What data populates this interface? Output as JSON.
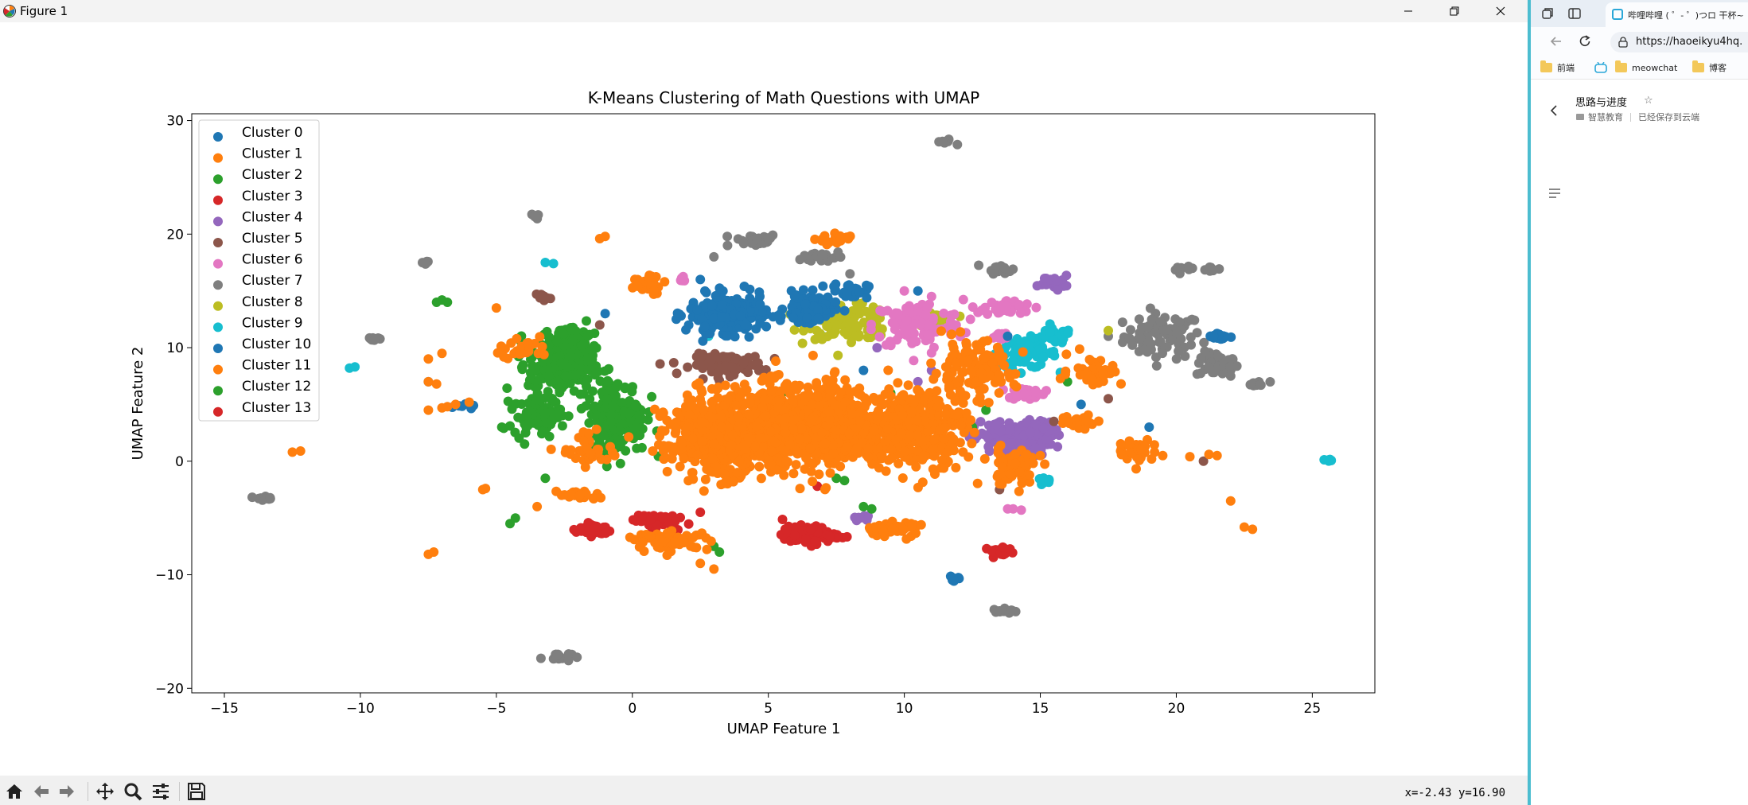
{
  "window": {
    "title": "Figure 1",
    "coords_readout": "x=-2.43 y=16.90"
  },
  "colors": {
    "C0": "#1f77b4",
    "C1": "#ff7f0e",
    "C2": "#2ca02c",
    "C3": "#d62728",
    "C4": "#9467bd",
    "C5": "#8c564b",
    "C6": "#e377c2",
    "C7": "#7f7f7f",
    "C8": "#bcbd22",
    "C9": "#17becf"
  },
  "toolbar": {
    "buttons": [
      "home-icon",
      "back-arrow-icon",
      "forward-arrow-icon",
      "pan-icon",
      "zoom-icon",
      "configure-subplots-icon",
      "save-icon"
    ]
  },
  "chart_data": {
    "type": "scatter",
    "title": "K-Means Clustering of Math Questions with UMAP",
    "xlabel": "UMAP Feature 1",
    "ylabel": "UMAP Feature 2",
    "xlim": [
      -16.2,
      27.3
    ],
    "ylim": [
      -20.4,
      30.6
    ],
    "xticks": [
      -15,
      -10,
      -5,
      0,
      5,
      10,
      15,
      20,
      25
    ],
    "yticks": [
      -20,
      -10,
      0,
      10,
      20,
      30
    ],
    "grid": false,
    "legend_position": "upper-left",
    "series": [
      {
        "name": "Cluster 0",
        "color": "#1f77b4",
        "blobs": [
          [
            3.5,
            13,
            1.3,
            1.5,
            220
          ],
          [
            6.5,
            13.5,
            0.8,
            1.1,
            110
          ],
          [
            8,
            15,
            0.6,
            0.6,
            30
          ],
          [
            21.6,
            11,
            0.5,
            0.3,
            18
          ],
          [
            11.8,
            -10.3,
            0.3,
            0.2,
            8
          ],
          [
            -6.2,
            5,
            0.3,
            0.3,
            6
          ]
        ],
        "points": [
          [
            10.5,
            15
          ],
          [
            13.8,
            11
          ],
          [
            16.5,
            5
          ],
          [
            19,
            3
          ],
          [
            -7.5,
            7
          ],
          [
            2.5,
            16
          ],
          [
            8.5,
            8
          ],
          [
            11,
            4
          ],
          [
            -1,
            13
          ]
        ]
      },
      {
        "name": "Cluster 1",
        "color": "#ff7f0e",
        "blobs": [
          [
            6,
            3,
            3.2,
            3.2,
            1100
          ],
          [
            3,
            2,
            1.6,
            3,
            320
          ],
          [
            10.5,
            3,
            1.6,
            3,
            340
          ],
          [
            12.5,
            8,
            1.4,
            2.2,
            140
          ],
          [
            9.5,
            -6,
            1,
            0.6,
            50
          ],
          [
            1.5,
            -7,
            1.2,
            0.7,
            60
          ],
          [
            14,
            -0.5,
            1,
            1.5,
            55
          ],
          [
            16.5,
            3.5,
            0.7,
            0.6,
            25
          ],
          [
            17,
            8,
            0.9,
            1.2,
            40
          ],
          [
            18.5,
            1,
            0.6,
            0.9,
            30
          ],
          [
            -4,
            10,
            0.8,
            1,
            30
          ],
          [
            -1.5,
            1,
            1,
            1.2,
            40
          ],
          [
            -2,
            -3,
            0.7,
            0.4,
            20
          ],
          [
            0.6,
            15.5,
            0.7,
            1,
            25
          ],
          [
            7.5,
            19.5,
            0.6,
            0.5,
            18
          ]
        ],
        "points": [
          [
            -12.5,
            0.8
          ],
          [
            -12.2,
            0.9
          ],
          [
            -7.5,
            -8.2
          ],
          [
            -7.3,
            -8
          ],
          [
            -5.5,
            -2.5
          ],
          [
            -5.4,
            -2.4
          ],
          [
            -5,
            13.5
          ],
          [
            -1,
            19.8
          ],
          [
            -1.2,
            19.6
          ],
          [
            22.5,
            -5.8
          ],
          [
            22.8,
            -6
          ],
          [
            22,
            -3.5
          ],
          [
            21.5,
            0.5
          ],
          [
            19.5,
            0.5
          ],
          [
            19.2,
            0.8
          ],
          [
            -7,
            9.5
          ],
          [
            -7.5,
            9
          ],
          [
            -6.5,
            5
          ],
          [
            -7.5,
            4.5
          ],
          [
            -7,
            4.7
          ],
          [
            -6.8,
            4.8
          ],
          [
            -6,
            5.2
          ],
          [
            -7.5,
            7
          ],
          [
            -7.2,
            6.8
          ],
          [
            -3.5,
            -4
          ],
          [
            2.5,
            -9
          ],
          [
            3,
            -9.5
          ],
          [
            14.5,
            0.6
          ],
          [
            15,
            0.5
          ],
          [
            13.5,
            -2
          ],
          [
            20.5,
            0.4
          ],
          [
            21.2,
            0.6
          ]
        ]
      },
      {
        "name": "Cluster 2",
        "color": "#2ca02c",
        "blobs": [
          [
            -2.6,
            8.5,
            1.1,
            2.5,
            240
          ],
          [
            -0.6,
            4,
            1,
            3,
            220
          ],
          [
            -3.5,
            4,
            0.8,
            1.5,
            70
          ],
          [
            -2.3,
            11,
            0.7,
            0.9,
            40
          ]
        ],
        "points": [
          [
            -7.2,
            14
          ],
          [
            -7,
            14.2
          ],
          [
            -6.8,
            14
          ],
          [
            -4.8,
            3
          ],
          [
            -4.5,
            3.1
          ],
          [
            -4.3,
            -5
          ],
          [
            -4.5,
            -5.5
          ],
          [
            -3.2,
            -1.5
          ],
          [
            3,
            -7.5
          ],
          [
            3.2,
            -8
          ],
          [
            7.5,
            -1.5
          ],
          [
            7.8,
            -1.7
          ],
          [
            8.5,
            -4
          ],
          [
            8.8,
            -4.2
          ],
          [
            9.5,
            6
          ],
          [
            10,
            5.5
          ],
          [
            16,
            7
          ],
          [
            6.5,
            5
          ],
          [
            5.5,
            6
          ],
          [
            12.5,
            3
          ],
          [
            13,
            4.5
          ]
        ]
      },
      {
        "name": "Cluster 3",
        "color": "#d62728",
        "blobs": [
          [
            6.5,
            -6.5,
            0.9,
            0.7,
            100
          ],
          [
            0.8,
            -5.2,
            0.7,
            0.6,
            60
          ],
          [
            -1.4,
            -6,
            0.6,
            0.5,
            40
          ],
          [
            13.5,
            -8,
            0.5,
            0.4,
            25
          ]
        ],
        "points": [
          [
            2.5,
            -4.5
          ],
          [
            6.8,
            -2.2
          ]
        ]
      },
      {
        "name": "Cluster 4",
        "color": "#9467bd",
        "blobs": [
          [
            14,
            2,
            1.3,
            1.4,
            140
          ],
          [
            15.5,
            15.8,
            0.5,
            0.5,
            30
          ],
          [
            15,
            3,
            0.5,
            0.6,
            25
          ],
          [
            8.5,
            -5,
            0.3,
            0.2,
            8
          ]
        ],
        "points": [
          [
            10.5,
            7
          ],
          [
            11,
            8
          ],
          [
            9,
            10
          ]
        ]
      },
      {
        "name": "Cluster 5",
        "color": "#8c564b",
        "blobs": [
          [
            3.5,
            8.5,
            1.2,
            0.8,
            120
          ],
          [
            -3.3,
            14.5,
            0.2,
            0.3,
            10
          ]
        ],
        "points": [
          [
            -1.2,
            12
          ],
          [
            15.5,
            3.5
          ],
          [
            17.5,
            5.5
          ],
          [
            21,
            0
          ],
          [
            13.5,
            -2.5
          ]
        ]
      },
      {
        "name": "Cluster 6",
        "color": "#e377c2",
        "blobs": [
          [
            10.5,
            12,
            1.5,
            2,
            110
          ],
          [
            13.8,
            13.5,
            0.8,
            0.6,
            40
          ],
          [
            14.5,
            6,
            0.6,
            0.5,
            25
          ],
          [
            13.5,
            11,
            0.4,
            0.4,
            15
          ],
          [
            1.8,
            16,
            0.2,
            0.2,
            5
          ]
        ],
        "points": [
          [
            10,
            15
          ],
          [
            11,
            14.5
          ],
          [
            14,
            -4.2
          ],
          [
            14.3,
            -4.3
          ],
          [
            13.8,
            -4.2
          ]
        ]
      },
      {
        "name": "Cluster 7",
        "color": "#7f7f7f",
        "blobs": [
          [
            19.5,
            11,
            1.3,
            1.8,
            80
          ],
          [
            21.5,
            8.5,
            0.7,
            1,
            40
          ],
          [
            4.5,
            19.5,
            0.8,
            0.5,
            30
          ],
          [
            7,
            18,
            0.7,
            0.5,
            25
          ],
          [
            13.5,
            17,
            0.4,
            0.4,
            15
          ],
          [
            11.5,
            28.1,
            0.3,
            0.2,
            10
          ],
          [
            13.7,
            -13.2,
            0.4,
            0.2,
            12
          ],
          [
            -2.8,
            -17.2,
            0.5,
            0.4,
            15
          ],
          [
            23,
            6.8,
            0.4,
            0.2,
            12
          ],
          [
            -13.5,
            -3.2,
            0.3,
            0.2,
            10
          ],
          [
            21.3,
            16.9,
            0.3,
            0.2,
            8
          ],
          [
            20.3,
            16.9,
            0.3,
            0.2,
            8
          ],
          [
            -7.6,
            17.5,
            0.2,
            0.2,
            6
          ],
          [
            -9.5,
            10.8,
            0.3,
            0.2,
            8
          ],
          [
            -3.5,
            21.6,
            0.2,
            0.2,
            6
          ]
        ],
        "points": [
          [
            3,
            18
          ],
          [
            3.5,
            19
          ],
          [
            8,
            16.5
          ],
          [
            17.5,
            11
          ],
          [
            22,
            7.5
          ]
        ]
      },
      {
        "name": "Cluster 8",
        "color": "#bcbd22",
        "blobs": [
          [
            8,
            12.2,
            1.4,
            1.3,
            120
          ],
          [
            11,
            12.5,
            0.6,
            0.6,
            30
          ]
        ],
        "points": [
          [
            17.5,
            11.5
          ],
          [
            7,
            5
          ]
        ]
      },
      {
        "name": "Cluster 9",
        "color": "#17becf",
        "blobs": [
          [
            14.5,
            9.5,
            1,
            1.2,
            80
          ],
          [
            15.5,
            11,
            0.6,
            0.6,
            30
          ],
          [
            15.2,
            -1.8,
            0.3,
            0.3,
            10
          ],
          [
            25.6,
            0.1,
            0.2,
            0.2,
            6
          ]
        ],
        "points": [
          [
            -3.2,
            17.5
          ],
          [
            -2.9,
            17.4
          ],
          [
            -10.4,
            8.2
          ],
          [
            -10.2,
            8.3
          ],
          [
            7,
            11
          ],
          [
            -1.5,
            -6.5
          ],
          [
            2.8,
            11
          ]
        ]
      },
      {
        "name": "Cluster 10",
        "color": "#1f77b4",
        "blobs": [],
        "points": []
      },
      {
        "name": "Cluster 11",
        "color": "#ff7f0e",
        "blobs": [],
        "points": []
      },
      {
        "name": "Cluster 12",
        "color": "#2ca02c",
        "blobs": [],
        "points": []
      },
      {
        "name": "Cluster 13",
        "color": "#d62728",
        "blobs": [],
        "points": []
      }
    ]
  },
  "browser": {
    "tab_title": "哔哩哔哩 ( ゜- ゜)つロ 干杯~",
    "url": "https://haoeikyu4hq.",
    "bookmarks": [
      "前端",
      "meowchat",
      "博客"
    ],
    "doc_title": "思路与进度",
    "doc_folder": "智慧教育",
    "doc_status": "已经保存到云端"
  }
}
